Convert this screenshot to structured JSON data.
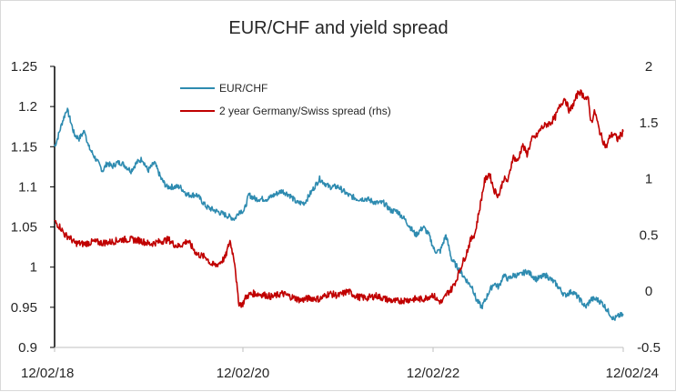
{
  "chart_data": {
    "type": "line",
    "title": "EUR/CHF and yield spread",
    "xlabel": "",
    "ylabel": "",
    "x_range": [
      "12/02/18",
      "12/02/24"
    ],
    "x_ticks": [
      "12/02/18",
      "12/02/20",
      "12/02/22",
      "12/02/24"
    ],
    "ylim_left": [
      0.9,
      1.25
    ],
    "yticks_left": [
      "0.9",
      "0.95",
      "1",
      "1.05",
      "1.1",
      "1.15",
      "1.2",
      "1.25"
    ],
    "ylim_right": [
      -0.5,
      2
    ],
    "yticks_right": [
      "-0.5",
      "0",
      "0.5",
      "1",
      "1.5",
      "2"
    ],
    "grid": false,
    "legend_position": "top-center",
    "series": [
      {
        "name": "EUR/CHF",
        "axis": "left",
        "color": "#2E8BB0",
        "x": [
          2018.09,
          2018.12,
          2018.17,
          2018.22,
          2018.24,
          2018.3,
          2018.35,
          2018.41,
          2018.45,
          2018.5,
          2018.55,
          2018.6,
          2018.65,
          2018.7,
          2018.75,
          2018.8,
          2018.85,
          2018.9,
          2018.96,
          2019.02,
          2019.08,
          2019.15,
          2019.22,
          2019.28,
          2019.35,
          2019.42,
          2019.5,
          2019.6,
          2019.7,
          2019.8,
          2019.9,
          2020.0,
          2020.05,
          2020.1,
          2020.15,
          2020.22,
          2020.28,
          2020.35,
          2020.42,
          2020.5,
          2020.58,
          2020.66,
          2020.74,
          2020.82,
          2020.9,
          2021.0,
          2021.1,
          2021.2,
          2021.3,
          2021.4,
          2021.5,
          2021.58,
          2021.66,
          2021.72,
          2021.8,
          2021.86,
          2021.92,
          2022.0,
          2022.06,
          2022.12,
          2022.18,
          2022.24,
          2022.3,
          2022.36,
          2022.42,
          2022.48,
          2022.52,
          2022.56,
          2022.62,
          2022.66,
          2022.7,
          2022.75,
          2022.8,
          2022.85,
          2022.9,
          2022.96,
          2023.02,
          2023.1,
          2023.2,
          2023.3,
          2023.4,
          2023.5,
          2023.58,
          2023.66,
          2023.72,
          2023.78,
          2023.84,
          2023.9,
          2023.96,
          2024.02,
          2024.08,
          2024.12
        ],
        "values": [
          1.15,
          1.16,
          1.18,
          1.197,
          1.19,
          1.165,
          1.16,
          1.17,
          1.15,
          1.14,
          1.13,
          1.12,
          1.13,
          1.125,
          1.13,
          1.13,
          1.125,
          1.12,
          1.13,
          1.135,
          1.12,
          1.13,
          1.11,
          1.1,
          1.1,
          1.1,
          1.09,
          1.09,
          1.075,
          1.07,
          1.065,
          1.06,
          1.07,
          1.07,
          1.09,
          1.085,
          1.085,
          1.085,
          1.09,
          1.095,
          1.09,
          1.08,
          1.08,
          1.095,
          1.11,
          1.1,
          1.1,
          1.09,
          1.085,
          1.085,
          1.08,
          1.08,
          1.07,
          1.07,
          1.06,
          1.05,
          1.04,
          1.05,
          1.04,
          1.02,
          1.02,
          1.04,
          1.01,
          1.0,
          0.99,
          0.98,
          0.975,
          0.96,
          0.95,
          0.96,
          0.97,
          0.98,
          0.975,
          0.99,
          0.985,
          0.99,
          0.99,
          0.995,
          0.985,
          0.99,
          0.98,
          0.965,
          0.97,
          0.96,
          0.95,
          0.96,
          0.96,
          0.955,
          0.945,
          0.935,
          0.94,
          0.94
        ]
      },
      {
        "name": "2 year Germany/Swiss spread (rhs)",
        "axis": "right",
        "color": "#C00000",
        "x": [
          2018.09,
          2018.15,
          2018.2,
          2018.25,
          2018.3,
          2018.4,
          2018.5,
          2018.6,
          2018.7,
          2018.8,
          2018.9,
          2019.0,
          2019.1,
          2019.2,
          2019.3,
          2019.35,
          2019.4,
          2019.45,
          2019.5,
          2019.6,
          2019.7,
          2019.75,
          2019.8,
          2019.85,
          2019.9,
          2019.95,
          2020.0,
          2020.04,
          2020.08,
          2020.12,
          2020.16,
          2020.2,
          2020.3,
          2020.4,
          2020.5,
          2020.6,
          2020.7,
          2020.8,
          2020.9,
          2021.0,
          2021.1,
          2021.2,
          2021.3,
          2021.4,
          2021.5,
          2021.6,
          2021.7,
          2021.8,
          2021.9,
          2022.0,
          2022.05,
          2022.1,
          2022.15,
          2022.2,
          2022.25,
          2022.3,
          2022.35,
          2022.4,
          2022.45,
          2022.5,
          2022.55,
          2022.6,
          2022.65,
          2022.7,
          2022.75,
          2022.8,
          2022.85,
          2022.9,
          2022.95,
          2023.0,
          2023.05,
          2023.1,
          2023.15,
          2023.2,
          2023.25,
          2023.3,
          2023.35,
          2023.4,
          2023.45,
          2023.5,
          2023.55,
          2023.6,
          2023.65,
          2023.7,
          2023.75,
          2023.78,
          2023.82,
          2023.86,
          2023.9,
          2023.94,
          2023.98,
          2024.02,
          2024.06,
          2024.12
        ],
        "values": [
          0.62,
          0.57,
          0.5,
          0.48,
          0.43,
          0.42,
          0.44,
          0.43,
          0.44,
          0.46,
          0.46,
          0.45,
          0.42,
          0.44,
          0.46,
          0.42,
          0.4,
          0.42,
          0.45,
          0.33,
          0.3,
          0.24,
          0.23,
          0.26,
          0.3,
          0.45,
          0.26,
          -0.1,
          -0.12,
          -0.05,
          -0.03,
          -0.02,
          -0.03,
          -0.05,
          -0.02,
          -0.05,
          -0.08,
          -0.06,
          -0.07,
          -0.02,
          -0.04,
          0.0,
          -0.05,
          -0.06,
          -0.04,
          -0.07,
          -0.09,
          -0.08,
          -0.07,
          -0.07,
          -0.05,
          -0.03,
          -0.08,
          -0.1,
          -0.02,
          0.02,
          0.1,
          0.22,
          0.32,
          0.45,
          0.52,
          0.75,
          0.98,
          1.05,
          0.9,
          0.85,
          1.0,
          0.98,
          1.2,
          1.15,
          1.3,
          1.22,
          1.35,
          1.38,
          1.45,
          1.48,
          1.5,
          1.55,
          1.65,
          1.72,
          1.6,
          1.68,
          1.78,
          1.74,
          1.7,
          1.5,
          1.6,
          1.45,
          1.35,
          1.28,
          1.38,
          1.4,
          1.35,
          1.42
        ]
      }
    ]
  }
}
